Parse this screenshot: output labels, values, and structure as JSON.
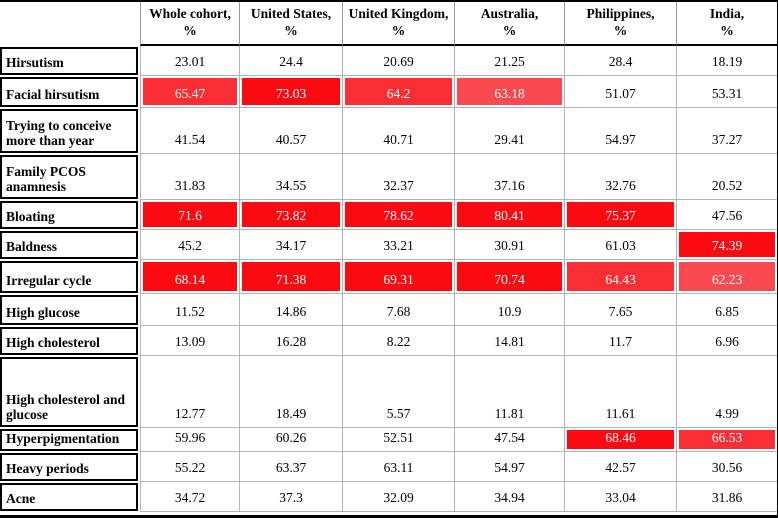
{
  "chart_data": {
    "type": "table",
    "corner_label": "",
    "columns": [
      {
        "title": "Whole cohort,",
        "unit": "%"
      },
      {
        "title": "United States,",
        "unit": "%"
      },
      {
        "title": "United Kingdom,",
        "unit": "%"
      },
      {
        "title": "Australia,",
        "unit": "%"
      },
      {
        "title": "Philippines,",
        "unit": "%"
      },
      {
        "title": "India,",
        "unit": "%"
      }
    ],
    "rows": [
      {
        "label": "Hirsutism",
        "values": [
          "23.01",
          "24.4",
          "20.69",
          "21.25",
          "28.4",
          "18.19"
        ],
        "highlight": [
          0,
          0,
          0,
          0,
          0,
          0
        ]
      },
      {
        "label": "Facial hirsutism",
        "values": [
          "65.47",
          "73.03",
          "64.2",
          "63.18",
          "51.07",
          "53.31"
        ],
        "highlight": [
          2,
          3,
          2,
          1,
          0,
          0
        ]
      },
      {
        "label": "Trying to conceive more than year",
        "values": [
          "41.54",
          "40.57",
          "40.71",
          "29.41",
          "54.97",
          "37.27"
        ],
        "highlight": [
          0,
          0,
          0,
          0,
          0,
          0
        ]
      },
      {
        "label": "Family PCOS anamnesis",
        "values": [
          "31.83",
          "34.55",
          "32.37",
          "37.16",
          "32.76",
          "20.52"
        ],
        "highlight": [
          0,
          0,
          0,
          0,
          0,
          0
        ]
      },
      {
        "label": "Bloating",
        "values": [
          "71.6",
          "73.82",
          "78.62",
          "80.41",
          "75.37",
          "47.56"
        ],
        "highlight": [
          3,
          3,
          3,
          3,
          3,
          0
        ]
      },
      {
        "label": "Baldness",
        "values": [
          "45.2",
          "34.17",
          "33.21",
          "30.91",
          "61.03",
          "74.39"
        ],
        "highlight": [
          0,
          0,
          0,
          0,
          0,
          3
        ]
      },
      {
        "label": "Irregular cycle",
        "values": [
          "68.14",
          "71.38",
          "69.31",
          "70.74",
          "64.43",
          "62.23"
        ],
        "highlight": [
          3,
          3,
          3,
          3,
          2,
          1
        ]
      },
      {
        "label": "High glucose",
        "values": [
          "11.52",
          "14.86",
          "7.68",
          "10.9",
          "7.65",
          "6.85"
        ],
        "highlight": [
          0,
          0,
          0,
          0,
          0,
          0
        ]
      },
      {
        "label": "High cholesterol",
        "values": [
          "13.09",
          "16.28",
          "8.22",
          "14.81",
          "11.7",
          "6.96"
        ],
        "highlight": [
          0,
          0,
          0,
          0,
          0,
          0
        ]
      },
      {
        "label": "High cholesterol and glucose",
        "values": [
          "12.77",
          "18.49",
          "5.57",
          "11.81",
          "11.61",
          "4.99"
        ],
        "highlight": [
          0,
          0,
          0,
          0,
          0,
          0
        ]
      },
      {
        "label": "Hyperpigmentation",
        "values": [
          "59.96",
          "60.26",
          "52.51",
          "47.54",
          "68.46",
          "66.53"
        ],
        "highlight": [
          0,
          0,
          0,
          0,
          3,
          2
        ]
      },
      {
        "label": "Heavy periods",
        "values": [
          "55.22",
          "63.37",
          "63.11",
          "54.97",
          "42.57",
          "30.56"
        ],
        "highlight": [
          0,
          0,
          0,
          0,
          0,
          0
        ]
      },
      {
        "label": "Acne",
        "values": [
          "34.72",
          "37.3",
          "32.09",
          "34.94",
          "33.04",
          "31.86"
        ],
        "highlight": [
          0,
          0,
          0,
          0,
          0,
          0
        ]
      }
    ],
    "colors": {
      "highlight_strong": "#fb0a12",
      "highlight_medium": "#fb2d35",
      "highlight_light": "#fa4a50",
      "highlight_text": "#ffffff",
      "text": "#000000"
    }
  }
}
